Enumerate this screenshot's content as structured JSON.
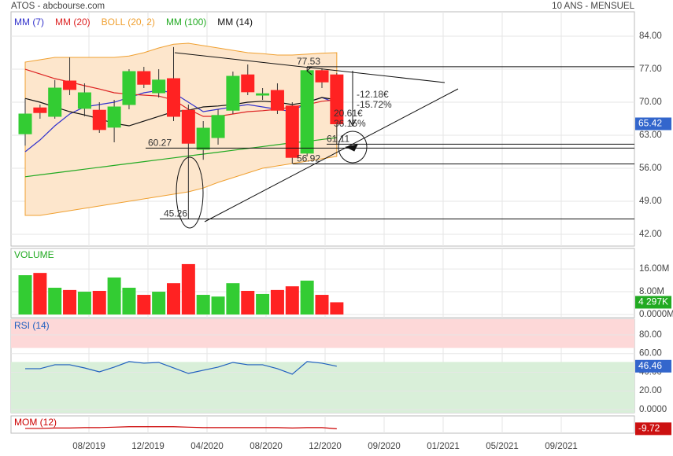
{
  "chart_data": [
    {
      "type": "candlestick",
      "title": "ATOS - abcbourse.com",
      "subtitle": "10 ANS - MENSUEL",
      "open": [
        63.3,
        68.8,
        67,
        74.5,
        68.7,
        68.3,
        64.7,
        69.5,
        76.5,
        72,
        75,
        68.3,
        60,
        62.5,
        68.3,
        75.8,
        71.5,
        72.5,
        69.2,
        59.2,
        76.7,
        75.8
      ],
      "high": [
        70.8,
        69.5,
        74.7,
        79.5,
        74,
        70,
        70.5,
        77,
        77.5,
        77,
        81.7,
        69.5,
        66,
        68.5,
        76.5,
        78,
        73,
        74,
        70,
        77.53,
        77.2,
        76.2
      ],
      "low": [
        60.8,
        66.5,
        66.5,
        71.5,
        67,
        63.5,
        61.5,
        68.5,
        73,
        71,
        66,
        45.26,
        57.8,
        61,
        67.5,
        71.5,
        70.5,
        67.5,
        56.92,
        58.5,
        73,
        61.11
      ],
      "close": [
        67.5,
        67.8,
        73,
        72.7,
        72,
        64.2,
        69,
        76.5,
        73.8,
        74.7,
        67,
        61.3,
        64.5,
        67.2,
        75.5,
        72.2,
        71.8,
        68.3,
        58.3,
        76.7,
        74.3,
        65.42
      ],
      "up_color": "#33cc33",
      "down_color": "#ff2222",
      "series": [
        {
          "name": "MM (7)",
          "color": "#3333cc",
          "values": [
            59.5,
            62,
            65,
            67.5,
            69,
            69.5,
            70,
            71,
            72,
            72.5,
            72,
            70,
            68,
            68.5,
            69,
            69.5,
            69,
            68.5,
            68,
            70,
            71,
            69.8
          ]
        },
        {
          "name": "MM (20)",
          "color": "#dd2222",
          "values": [
            77,
            76,
            75,
            74.3,
            73.5,
            72.8,
            72,
            71.7,
            71.5,
            71.3,
            70.5,
            68.5,
            67,
            67,
            67.5,
            68,
            68.2,
            68.5,
            69,
            69.5,
            70.2,
            70.5
          ]
        },
        {
          "name": "BOLL (20, 2)",
          "color": "#f0a030",
          "upper": [
            78.5,
            79,
            79.5,
            79.5,
            79.5,
            79.5,
            79.5,
            79.8,
            80.5,
            81.5,
            82.3,
            82.5,
            82,
            81.5,
            81,
            80.5,
            80.3,
            80,
            80,
            80.2,
            80.4,
            80.5
          ],
          "lower": [
            46,
            46,
            46.5,
            47,
            47.5,
            48,
            48.5,
            49,
            49.5,
            50,
            50.5,
            51,
            51.8,
            53,
            54,
            55,
            56,
            56.5,
            57,
            57.5,
            58,
            58.5
          ]
        },
        {
          "name": "MM (100)",
          "color": "#22aa22",
          "values": [
            54.2,
            54.6,
            55,
            55.4,
            55.8,
            56.2,
            56.6,
            57,
            57.4,
            57.8,
            58.2,
            58.6,
            59,
            59.4,
            59.8,
            60.2,
            60.6,
            61,
            61.4,
            61.7,
            62.1,
            62.5
          ]
        },
        {
          "name": "MM (14)",
          "color": "#111111",
          "values": [
            70.8,
            70,
            69,
            68,
            67.3,
            66.5,
            65.5,
            65,
            66,
            67,
            68,
            68.3,
            69,
            69.2,
            69.5,
            70,
            70.2,
            70,
            69.5,
            70,
            71,
            70.5
          ]
        }
      ],
      "ylim": [
        39.5,
        89.17
      ],
      "yticks": [
        {
          "value": 84,
          "label": "84.00"
        },
        {
          "value": 77,
          "label": "77.00"
        },
        {
          "value": 70,
          "label": "70.00"
        },
        {
          "value": 63,
          "label": "63.00"
        },
        {
          "value": 56,
          "label": "56.00"
        },
        {
          "value": 49,
          "label": "49.00"
        },
        {
          "value": 42,
          "label": "42.00"
        }
      ],
      "xticks": [
        "08/2019",
        "12/2019",
        "04/2020",
        "08/2020",
        "12/2020",
        "09/2020",
        "01/2021",
        "05/2021",
        "09/2021"
      ],
      "levels": [
        77.53,
        60.27,
        61.11,
        56.92,
        45.26
      ],
      "notes": [
        "-12.18€",
        "-15.72%",
        "20.61€",
        "36.15%"
      ]
    },
    {
      "type": "bar",
      "title": "VOLUME",
      "values": [
        13.8,
        14.6,
        9.4,
        8.6,
        8,
        8.3,
        13,
        9.4,
        6.9,
        8,
        11,
        17.7,
        6.9,
        6.3,
        11,
        8.3,
        7.2,
        8.6,
        9.9,
        11.9,
        6.9,
        4.297
      ],
      "last_label": "4 297K",
      "ylim": [
        -1.1,
        23.2
      ],
      "yticks": [
        {
          "value": 16,
          "label": "16.00M"
        },
        {
          "value": 8,
          "label": "8.00M"
        },
        {
          "value": 0,
          "label": "0.0000M"
        }
      ]
    },
    {
      "type": "line",
      "title": "RSI (14)",
      "color": "#1f5fbf",
      "values": [
        43.8,
        43.8,
        48,
        48,
        44.6,
        40.4,
        45.5,
        51.4,
        49.7,
        50.5,
        44.6,
        38.7,
        42.1,
        45.5,
        50.5,
        48,
        48,
        43.8,
        37.9,
        51.4,
        49.7,
        46.46
      ],
      "ylim": [
        -3.4,
        96.8
      ],
      "yticks": [
        {
          "value": 80,
          "label": "80.00"
        },
        {
          "value": 60,
          "label": "60.00"
        },
        {
          "value": 40,
          "label": "40.00"
        },
        {
          "value": 20,
          "label": "20.00"
        },
        {
          "value": 0,
          "label": "0.0000"
        }
      ],
      "zones": [
        {
          "from": 66,
          "to": 96.8,
          "color": "#fdd8d8"
        },
        {
          "from": -3.4,
          "to": 51,
          "color": "#d9efd9"
        }
      ]
    },
    {
      "type": "line",
      "title": "MOM (12)",
      "color": "#cc0000",
      "values": [
        -9,
        -9,
        -8,
        -8,
        -7,
        -7,
        -6,
        -5,
        -5,
        -5,
        -5,
        -6,
        -7,
        -7,
        -7,
        -7,
        -7,
        -7,
        -8,
        -7,
        -7,
        -9.72
      ],
      "ylim": [
        -20,
        20
      ]
    }
  ]
}
